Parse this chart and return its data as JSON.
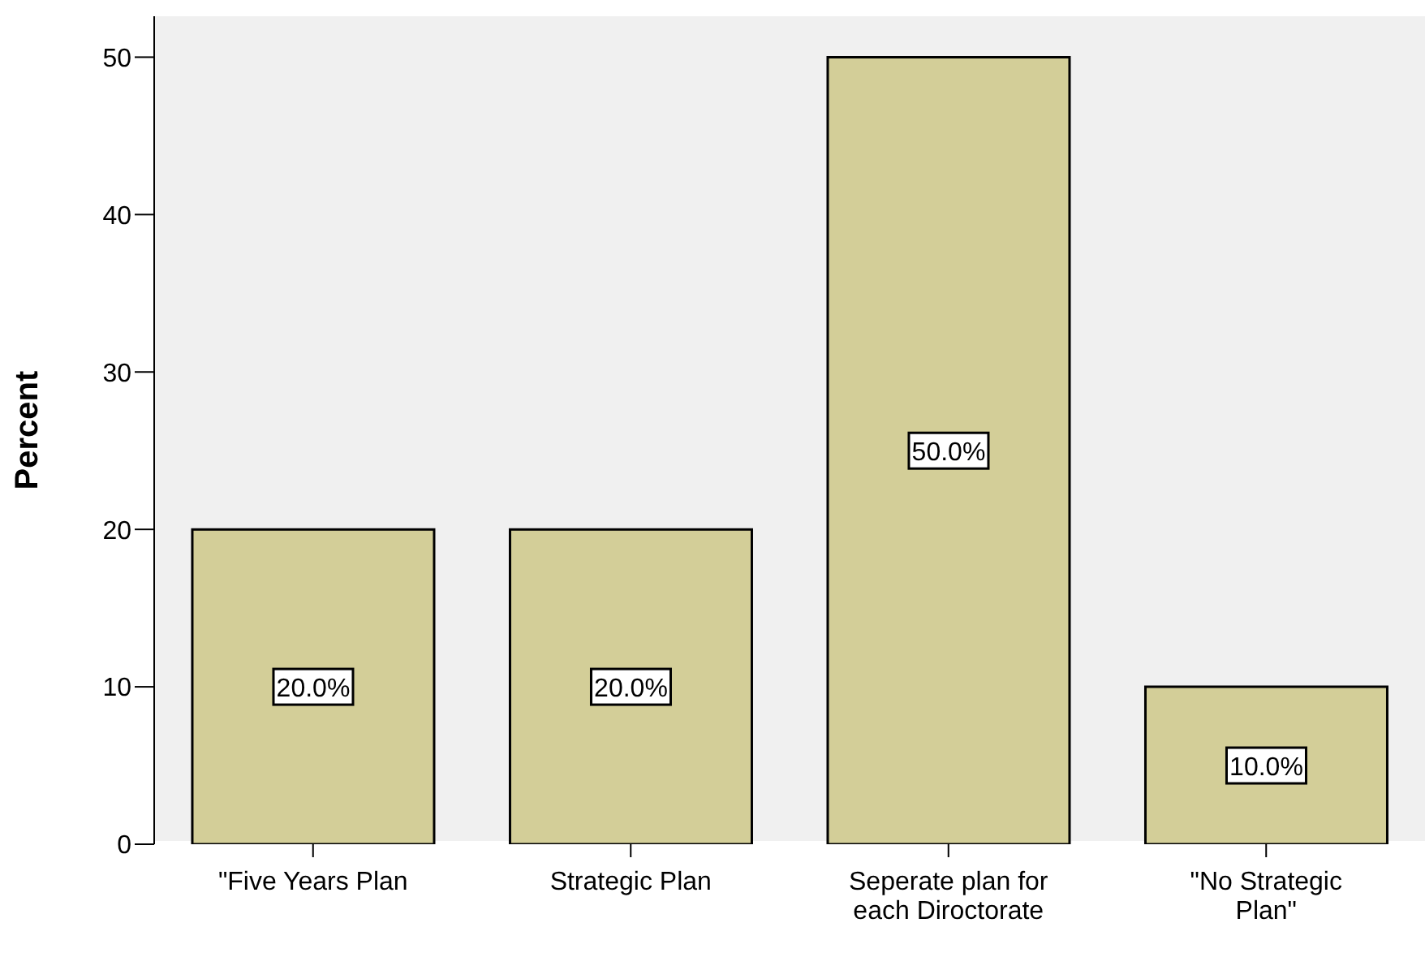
{
  "chart_data": {
    "type": "bar",
    "ylabel": "Percent",
    "categories": [
      "\"Five Years Plan",
      "Strategic Plan",
      "Seperate plan for each Diroctorate",
      "\"No Strategic Plan\""
    ],
    "values": [
      20,
      20,
      50,
      10
    ],
    "color": "#d3ce98",
    "value_labels": [
      "20.0%",
      "20.0%",
      "50.0%",
      "10.0%"
    ],
    "ylim": [
      0,
      52.6
    ],
    "yticks": [
      0,
      10,
      20,
      30,
      40,
      50
    ],
    "grid": false
  }
}
